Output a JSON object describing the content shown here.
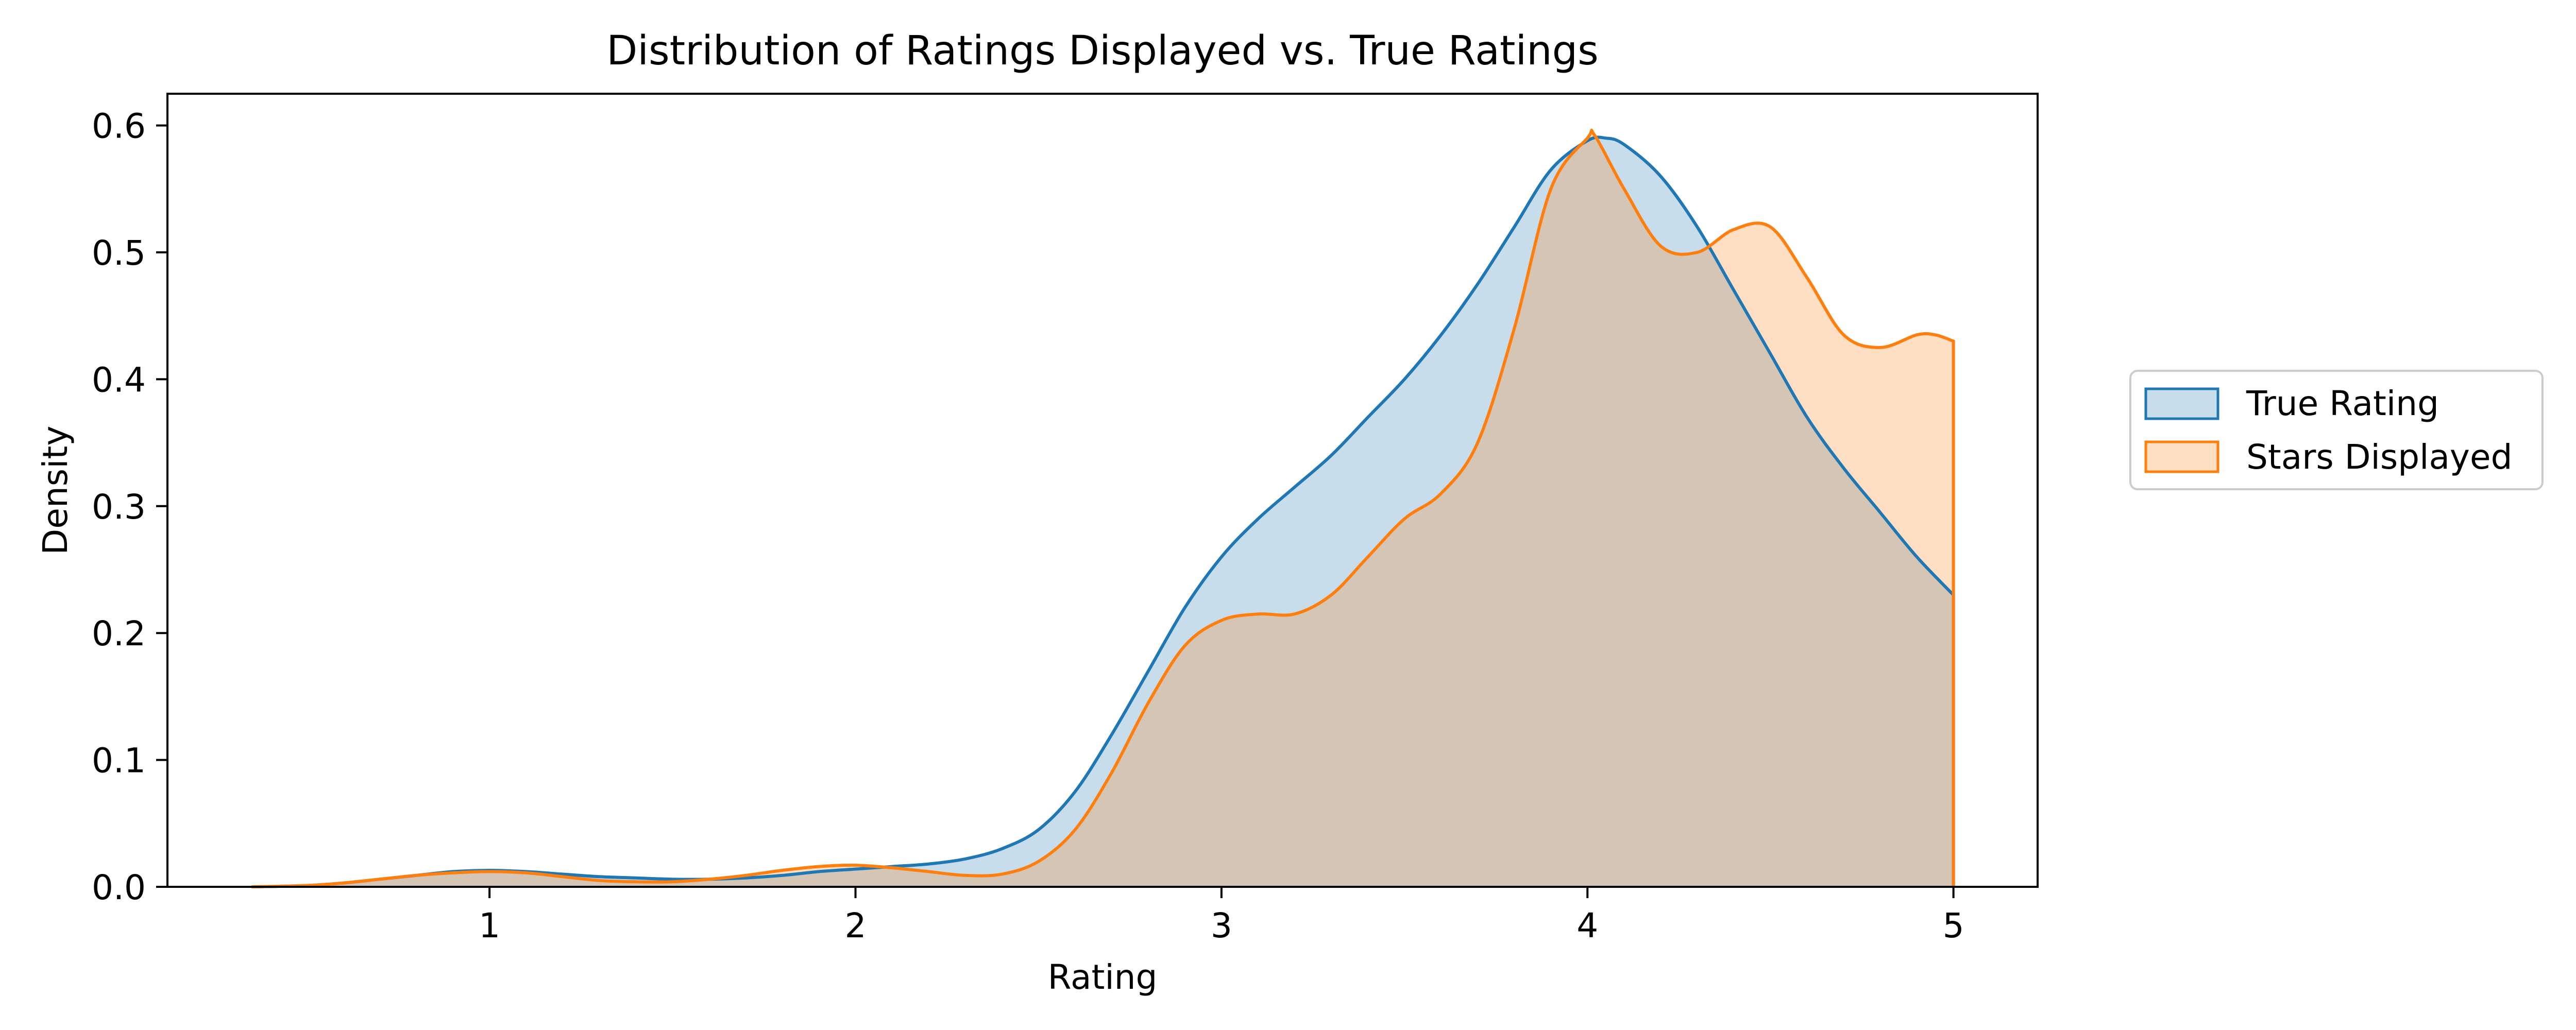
{
  "chart_data": {
    "type": "area",
    "title": "Distribution of Ratings Displayed vs. True Ratings",
    "xlabel": "Rating",
    "ylabel": "Density",
    "xlim": [
      0.12,
      5.23
    ],
    "ylim": [
      0.0,
      0.625
    ],
    "xticks": [
      1,
      2,
      3,
      4,
      5
    ],
    "xtick_labels": [
      "1",
      "2",
      "3",
      "4",
      "5"
    ],
    "yticks": [
      0.0,
      0.1,
      0.2,
      0.3,
      0.4,
      0.5,
      0.6
    ],
    "ytick_labels": [
      "0.0",
      "0.1",
      "0.2",
      "0.3",
      "0.4",
      "0.5",
      "0.6"
    ],
    "grid": false,
    "legend_position": "right",
    "series": [
      {
        "name": "True Rating",
        "color": "#1f77b4",
        "x": [
          0.35,
          0.5,
          0.6,
          0.7,
          0.8,
          0.9,
          1.0,
          1.1,
          1.2,
          1.3,
          1.4,
          1.5,
          1.6,
          1.7,
          1.8,
          1.9,
          2.0,
          2.1,
          2.2,
          2.3,
          2.4,
          2.5,
          2.6,
          2.7,
          2.8,
          2.9,
          3.0,
          3.1,
          3.2,
          3.3,
          3.4,
          3.5,
          3.6,
          3.7,
          3.8,
          3.9,
          4.0,
          4.05,
          4.1,
          4.2,
          4.3,
          4.4,
          4.5,
          4.6,
          4.7,
          4.8,
          4.9,
          5.0
        ],
        "y": [
          0.0,
          0.001,
          0.003,
          0.006,
          0.009,
          0.012,
          0.013,
          0.012,
          0.01,
          0.008,
          0.007,
          0.006,
          0.006,
          0.007,
          0.009,
          0.012,
          0.014,
          0.016,
          0.018,
          0.022,
          0.03,
          0.045,
          0.075,
          0.12,
          0.17,
          0.22,
          0.26,
          0.29,
          0.315,
          0.34,
          0.37,
          0.4,
          0.435,
          0.475,
          0.52,
          0.565,
          0.588,
          0.59,
          0.585,
          0.56,
          0.52,
          0.47,
          0.42,
          0.37,
          0.33,
          0.295,
          0.26,
          0.23
        ]
      },
      {
        "name": "Stars Displayed",
        "color": "#ff7f0e",
        "x": [
          0.35,
          0.5,
          0.6,
          0.7,
          0.8,
          0.9,
          1.0,
          1.1,
          1.2,
          1.3,
          1.4,
          1.5,
          1.6,
          1.7,
          1.8,
          1.9,
          2.0,
          2.1,
          2.2,
          2.3,
          2.4,
          2.5,
          2.6,
          2.7,
          2.8,
          2.9,
          3.0,
          3.1,
          3.2,
          3.3,
          3.4,
          3.5,
          3.6,
          3.7,
          3.8,
          3.9,
          4.0,
          4.02,
          4.1,
          4.2,
          4.3,
          4.4,
          4.5,
          4.6,
          4.7,
          4.8,
          4.9,
          4.95,
          5.0
        ],
        "y": [
          0.0,
          0.001,
          0.003,
          0.006,
          0.009,
          0.011,
          0.012,
          0.011,
          0.008,
          0.005,
          0.004,
          0.004,
          0.006,
          0.009,
          0.013,
          0.016,
          0.017,
          0.015,
          0.012,
          0.009,
          0.01,
          0.02,
          0.045,
          0.09,
          0.145,
          0.19,
          0.21,
          0.215,
          0.215,
          0.23,
          0.26,
          0.29,
          0.31,
          0.35,
          0.44,
          0.55,
          0.59,
          0.592,
          0.55,
          0.505,
          0.5,
          0.518,
          0.52,
          0.48,
          0.435,
          0.425,
          0.435,
          0.435,
          0.43
        ]
      }
    ]
  }
}
